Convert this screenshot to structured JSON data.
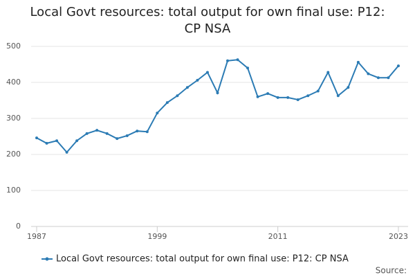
{
  "chart_data": {
    "type": "line",
    "title": "Local Govt resources: total output for own final use: P12: CP NSA",
    "x": [
      1987,
      1988,
      1989,
      1990,
      1991,
      1992,
      1993,
      1994,
      1995,
      1996,
      1997,
      1998,
      1999,
      2000,
      2001,
      2002,
      2003,
      2004,
      2005,
      2006,
      2007,
      2008,
      2009,
      2010,
      2011,
      2012,
      2013,
      2014,
      2015,
      2016,
      2017,
      2018,
      2019,
      2020,
      2021,
      2022,
      2023
    ],
    "series": [
      {
        "name": "Local Govt resources: total output for own final use: P12: CP NSA",
        "color": "#2b7bb4",
        "values": [
          246,
          231,
          238,
          206,
          238,
          258,
          267,
          258,
          244,
          252,
          265,
          263,
          315,
          344,
          363,
          386,
          406,
          428,
          371,
          460,
          463,
          440,
          360,
          369,
          358,
          358,
          352,
          363,
          376,
          428,
          363,
          386,
          456,
          424,
          413,
          413,
          446
        ]
      }
    ],
    "xlim": [
      1987,
      2023
    ],
    "xticks": [
      1987,
      1999,
      2011,
      2023
    ],
    "ylim": [
      0,
      500
    ],
    "yticks": [
      0,
      100,
      200,
      300,
      400,
      500
    ],
    "grid": true,
    "legend": "bottom",
    "source": "Source:"
  }
}
